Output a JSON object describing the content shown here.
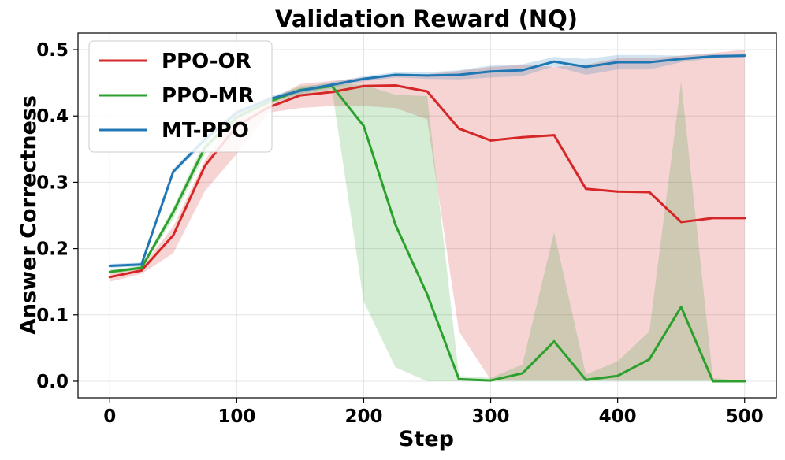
{
  "chart_data": {
    "type": "line",
    "title": "Validation Reward (NQ)",
    "xlabel": "Step",
    "ylabel": "Answer Correctness",
    "xlim": [
      -25,
      525
    ],
    "ylim": [
      -0.025,
      0.525
    ],
    "xticks": [
      0,
      100,
      200,
      300,
      400,
      500
    ],
    "yticks": [
      0.0,
      0.1,
      0.2,
      0.3,
      0.4,
      0.5
    ],
    "xtick_labels": [
      "0",
      "100",
      "200",
      "300",
      "400",
      "500"
    ],
    "ytick_labels": [
      "0.0",
      "0.1",
      "0.2",
      "0.3",
      "0.4",
      "0.5"
    ],
    "grid": true,
    "legend_position": "top-left",
    "x": [
      0,
      25,
      50,
      75,
      100,
      125,
      150,
      175,
      200,
      225,
      250,
      275,
      300,
      325,
      350,
      375,
      400,
      425,
      450,
      475,
      500
    ],
    "series": [
      {
        "name": "PPO-OR",
        "color": "#d62728",
        "values": [
          0.157,
          0.167,
          0.22,
          0.325,
          0.385,
          0.413,
          0.431,
          0.436,
          0.445,
          0.446,
          0.437,
          0.381,
          0.363,
          0.368,
          0.371,
          0.29,
          0.286,
          0.285,
          0.24,
          0.246,
          0.246
        ],
        "lower": [
          0.15,
          0.162,
          0.193,
          0.287,
          0.343,
          0.405,
          0.412,
          0.415,
          0.415,
          0.412,
          0.395,
          0.075,
          0.002,
          0.002,
          0.002,
          0.002,
          0.002,
          0.002,
          0.002,
          0.002,
          0.002
        ],
        "upper": [
          0.165,
          0.172,
          0.233,
          0.333,
          0.405,
          0.423,
          0.448,
          0.453,
          0.458,
          0.463,
          0.463,
          0.468,
          0.474,
          0.477,
          0.474,
          0.477,
          0.487,
          0.487,
          0.491,
          0.495,
          0.5
        ]
      },
      {
        "name": "PPO-MR",
        "color": "#2ca02c",
        "values": [
          0.165,
          0.171,
          0.255,
          0.353,
          0.398,
          0.421,
          0.439,
          0.445,
          0.385,
          0.236,
          0.131,
          0.003,
          0.001,
          0.012,
          0.06,
          0.002,
          0.008,
          0.033,
          0.112,
          0.0,
          0.0
        ],
        "lower": [
          0.162,
          0.168,
          0.245,
          0.343,
          0.395,
          0.418,
          0.432,
          0.44,
          0.12,
          0.021,
          0.0,
          0.0,
          0.0,
          0.0,
          0.0,
          0.0,
          0.0,
          0.0,
          0.0,
          0.0,
          0.0
        ],
        "upper": [
          0.168,
          0.174,
          0.262,
          0.363,
          0.402,
          0.425,
          0.445,
          0.449,
          0.447,
          0.432,
          0.43,
          0.008,
          0.005,
          0.025,
          0.225,
          0.01,
          0.03,
          0.075,
          0.452,
          0.005,
          0.0
        ]
      },
      {
        "name": "MT-PPO",
        "color": "#1f77b4",
        "values": [
          0.174,
          0.176,
          0.316,
          0.365,
          0.405,
          0.425,
          0.438,
          0.447,
          0.456,
          0.462,
          0.461,
          0.462,
          0.467,
          0.469,
          0.482,
          0.474,
          0.481,
          0.481,
          0.486,
          0.49,
          0.491
        ],
        "lower": [
          0.171,
          0.173,
          0.312,
          0.36,
          0.401,
          0.421,
          0.434,
          0.443,
          0.452,
          0.458,
          0.456,
          0.455,
          0.458,
          0.46,
          0.475,
          0.462,
          0.47,
          0.47,
          0.481,
          0.487,
          0.488
        ],
        "upper": [
          0.177,
          0.179,
          0.32,
          0.37,
          0.409,
          0.429,
          0.442,
          0.451,
          0.46,
          0.466,
          0.466,
          0.469,
          0.476,
          0.478,
          0.489,
          0.486,
          0.492,
          0.492,
          0.491,
          0.493,
          0.494
        ]
      }
    ]
  }
}
